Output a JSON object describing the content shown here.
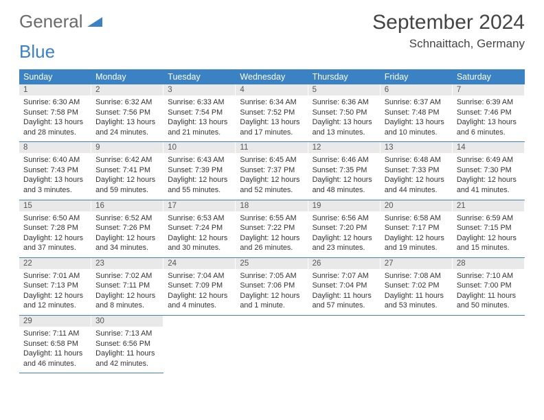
{
  "brand": {
    "general": "General",
    "blue": "Blue"
  },
  "title": "September 2024",
  "location": "Schnaittach, Germany",
  "colors": {
    "accent": "#3a82c4",
    "daynum_bg": "#e9e9e9",
    "text": "#333333"
  },
  "weekdays": [
    "Sunday",
    "Monday",
    "Tuesday",
    "Wednesday",
    "Thursday",
    "Friday",
    "Saturday"
  ],
  "calendar": {
    "type": "table",
    "columns": 7,
    "rows": 5,
    "days": [
      {
        "n": "1",
        "sunrise": "6:30 AM",
        "sunset": "7:58 PM",
        "daylight": "13 hours and 28 minutes."
      },
      {
        "n": "2",
        "sunrise": "6:32 AM",
        "sunset": "7:56 PM",
        "daylight": "13 hours and 24 minutes."
      },
      {
        "n": "3",
        "sunrise": "6:33 AM",
        "sunset": "7:54 PM",
        "daylight": "13 hours and 21 minutes."
      },
      {
        "n": "4",
        "sunrise": "6:34 AM",
        "sunset": "7:52 PM",
        "daylight": "13 hours and 17 minutes."
      },
      {
        "n": "5",
        "sunrise": "6:36 AM",
        "sunset": "7:50 PM",
        "daylight": "13 hours and 13 minutes."
      },
      {
        "n": "6",
        "sunrise": "6:37 AM",
        "sunset": "7:48 PM",
        "daylight": "13 hours and 10 minutes."
      },
      {
        "n": "7",
        "sunrise": "6:39 AM",
        "sunset": "7:46 PM",
        "daylight": "13 hours and 6 minutes."
      },
      {
        "n": "8",
        "sunrise": "6:40 AM",
        "sunset": "7:43 PM",
        "daylight": "13 hours and 3 minutes."
      },
      {
        "n": "9",
        "sunrise": "6:42 AM",
        "sunset": "7:41 PM",
        "daylight": "12 hours and 59 minutes."
      },
      {
        "n": "10",
        "sunrise": "6:43 AM",
        "sunset": "7:39 PM",
        "daylight": "12 hours and 55 minutes."
      },
      {
        "n": "11",
        "sunrise": "6:45 AM",
        "sunset": "7:37 PM",
        "daylight": "12 hours and 52 minutes."
      },
      {
        "n": "12",
        "sunrise": "6:46 AM",
        "sunset": "7:35 PM",
        "daylight": "12 hours and 48 minutes."
      },
      {
        "n": "13",
        "sunrise": "6:48 AM",
        "sunset": "7:33 PM",
        "daylight": "12 hours and 44 minutes."
      },
      {
        "n": "14",
        "sunrise": "6:49 AM",
        "sunset": "7:30 PM",
        "daylight": "12 hours and 41 minutes."
      },
      {
        "n": "15",
        "sunrise": "6:50 AM",
        "sunset": "7:28 PM",
        "daylight": "12 hours and 37 minutes."
      },
      {
        "n": "16",
        "sunrise": "6:52 AM",
        "sunset": "7:26 PM",
        "daylight": "12 hours and 34 minutes."
      },
      {
        "n": "17",
        "sunrise": "6:53 AM",
        "sunset": "7:24 PM",
        "daylight": "12 hours and 30 minutes."
      },
      {
        "n": "18",
        "sunrise": "6:55 AM",
        "sunset": "7:22 PM",
        "daylight": "12 hours and 26 minutes."
      },
      {
        "n": "19",
        "sunrise": "6:56 AM",
        "sunset": "7:20 PM",
        "daylight": "12 hours and 23 minutes."
      },
      {
        "n": "20",
        "sunrise": "6:58 AM",
        "sunset": "7:17 PM",
        "daylight": "12 hours and 19 minutes."
      },
      {
        "n": "21",
        "sunrise": "6:59 AM",
        "sunset": "7:15 PM",
        "daylight": "12 hours and 15 minutes."
      },
      {
        "n": "22",
        "sunrise": "7:01 AM",
        "sunset": "7:13 PM",
        "daylight": "12 hours and 12 minutes."
      },
      {
        "n": "23",
        "sunrise": "7:02 AM",
        "sunset": "7:11 PM",
        "daylight": "12 hours and 8 minutes."
      },
      {
        "n": "24",
        "sunrise": "7:04 AM",
        "sunset": "7:09 PM",
        "daylight": "12 hours and 4 minutes."
      },
      {
        "n": "25",
        "sunrise": "7:05 AM",
        "sunset": "7:06 PM",
        "daylight": "12 hours and 1 minute."
      },
      {
        "n": "26",
        "sunrise": "7:07 AM",
        "sunset": "7:04 PM",
        "daylight": "11 hours and 57 minutes."
      },
      {
        "n": "27",
        "sunrise": "7:08 AM",
        "sunset": "7:02 PM",
        "daylight": "11 hours and 53 minutes."
      },
      {
        "n": "28",
        "sunrise": "7:10 AM",
        "sunset": "7:00 PM",
        "daylight": "11 hours and 50 minutes."
      },
      {
        "n": "29",
        "sunrise": "7:11 AM",
        "sunset": "6:58 PM",
        "daylight": "11 hours and 46 minutes."
      },
      {
        "n": "30",
        "sunrise": "7:13 AM",
        "sunset": "6:56 PM",
        "daylight": "11 hours and 42 minutes."
      }
    ]
  }
}
